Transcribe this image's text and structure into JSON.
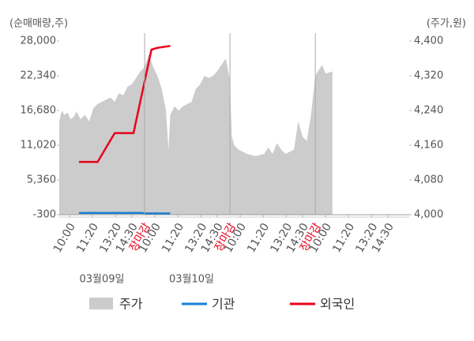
{
  "chart_data": {
    "type": "line",
    "y_axis_label": "(순매매량,주)",
    "y2_axis_label": "(주가,원)",
    "ylim": [
      -300,
      28000
    ],
    "yticks": [
      -300,
      {
        "value": 5360,
        "label": "5,360"
      },
      {
        "value": 11020,
        "label": "11,020"
      },
      {
        "value": 16680,
        "label": "16,680"
      },
      {
        "value": 22340,
        "label": "22,340"
      },
      {
        "value": 28000,
        "label": "28,000"
      }
    ],
    "y2lim": [
      4000,
      4400
    ],
    "y2ticks": [
      {
        "value": 4000,
        "label": "4,000"
      },
      {
        "value": 4080,
        "label": "4,080"
      },
      {
        "value": 4160,
        "label": "4,160"
      },
      {
        "value": 4240,
        "label": "4,240"
      },
      {
        "value": 4320,
        "label": "4,320"
      },
      {
        "value": 4400,
        "label": "4,400"
      }
    ],
    "xlim": [
      0,
      4.1
    ],
    "xticks": [
      {
        "value": 0.12,
        "label": "10:00"
      },
      {
        "value": 0.39,
        "label": "11:20"
      },
      {
        "value": 0.66,
        "label": "13:20"
      },
      {
        "value": 0.85,
        "label": "14:30"
      },
      {
        "value": 1,
        "label": "장마감",
        "color": "#e8001c"
      },
      {
        "value": 1.12,
        "label": "10:00"
      },
      {
        "value": 1.39,
        "label": "11:20"
      },
      {
        "value": 1.66,
        "label": "13:20"
      },
      {
        "value": 1.85,
        "label": "14:30"
      },
      {
        "value": 2,
        "label": "장마감",
        "color": "#e8001c"
      },
      {
        "value": 2.12,
        "label": "10:00"
      },
      {
        "value": 2.39,
        "label": "11:20"
      },
      {
        "value": 2.66,
        "label": "13:20"
      },
      {
        "value": 2.85,
        "label": "14:30"
      },
      {
        "value": 3,
        "label": "장마감",
        "color": "#e8001c"
      },
      {
        "value": 3.12,
        "label": "10:00"
      },
      {
        "value": 3.39,
        "label": "11:20"
      },
      {
        "value": 3.66,
        "label": "13:20"
      },
      {
        "value": 3.85,
        "label": "14:30"
      }
    ],
    "dates": [
      {
        "x": 0.5,
        "label": "03월09일"
      },
      {
        "x": 1.55,
        "label": "03월10일"
      }
    ],
    "series": [
      {
        "name": "주가",
        "type": "area",
        "axis": "y2",
        "color": "#cccccc",
        "x": [
          0.0,
          0.03,
          0.06,
          0.1,
          0.13,
          0.17,
          0.2,
          0.25,
          0.3,
          0.35,
          0.4,
          0.45,
          0.5,
          0.55,
          0.6,
          0.65,
          0.7,
          0.75,
          0.8,
          0.85,
          0.9,
          0.95,
          1.0,
          1.05,
          1.1,
          1.15,
          1.2,
          1.25,
          1.28,
          1.3,
          1.35,
          1.4,
          1.45,
          1.5,
          1.55,
          1.6,
          1.65,
          1.7,
          1.75,
          1.8,
          1.85,
          1.9,
          1.95,
          2.0,
          2.02,
          2.05,
          2.1,
          2.2,
          2.3,
          2.4,
          2.45,
          2.5,
          2.55,
          2.6,
          2.65,
          2.7,
          2.75,
          2.8,
          2.85,
          2.9,
          2.95,
          3.0,
          3.03,
          3.08,
          3.12,
          3.2
        ],
        "values": [
          4215,
          4240,
          4230,
          4235,
          4220,
          4225,
          4238,
          4220,
          4230,
          4215,
          4245,
          4255,
          4260,
          4265,
          4270,
          4260,
          4280,
          4275,
          4295,
          4300,
          4315,
          4330,
          4340,
          4370,
          4340,
          4320,
          4290,
          4240,
          4150,
          4230,
          4250,
          4240,
          4250,
          4255,
          4260,
          4290,
          4300,
          4320,
          4315,
          4320,
          4330,
          4345,
          4360,
          4310,
          4180,
          4160,
          4150,
          4140,
          4135,
          4140,
          4155,
          4140,
          4165,
          4150,
          4140,
          4145,
          4150,
          4215,
          4180,
          4170,
          4230,
          4320,
          4330,
          4345,
          4325,
          4330
        ]
      },
      {
        "name": "기관",
        "type": "line",
        "color": "#1a7ed6",
        "x": [
          0.23,
          0.97,
          1.0,
          1.3
        ],
        "values": [
          0,
          0,
          -100,
          -100
        ]
      },
      {
        "name": "외국인",
        "type": "line",
        "color": "#e8001c",
        "x": [
          0.23,
          0.45,
          0.65,
          0.87,
          1.08,
          1.15,
          1.3
        ],
        "values": [
          8300,
          8300,
          13000,
          13000,
          26600,
          26900,
          27200
        ]
      }
    ]
  }
}
